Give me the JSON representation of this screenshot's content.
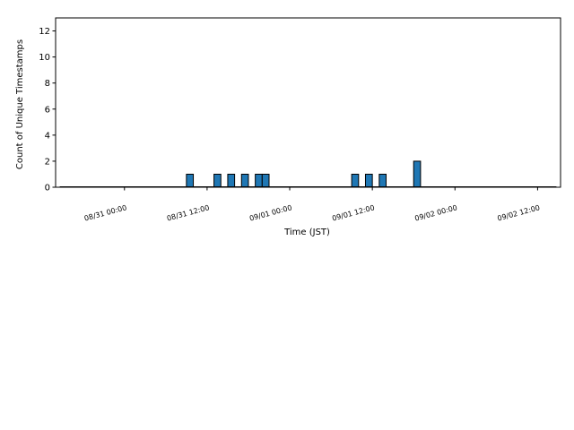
{
  "chart_data": {
    "type": "bar",
    "xlabel": "Time (JST)",
    "ylabel": "Count of Unique Timestamps",
    "x_ticks": [
      "08/31 00:00",
      "08/31 12:00",
      "09/01 00:00",
      "09/01 12:00",
      "09/02 00:00",
      "09/02 12:00"
    ],
    "y_ticks": [
      0,
      2,
      4,
      6,
      8,
      10,
      12
    ],
    "ylim": [
      0,
      13
    ],
    "xlim": [
      "2024-08-30 14:00",
      "2024-09-02 15:20"
    ],
    "bin_width_hours": 1,
    "bar_color": "#1f77b4",
    "edge_color": "#000000",
    "grid": false,
    "legend": "none",
    "bars": [
      {
        "time": "2024-08-31 09:00",
        "value": 1
      },
      {
        "time": "2024-08-31 13:00",
        "value": 1
      },
      {
        "time": "2024-08-31 15:00",
        "value": 1
      },
      {
        "time": "2024-08-31 17:00",
        "value": 1
      },
      {
        "time": "2024-08-31 19:00",
        "value": 1
      },
      {
        "time": "2024-08-31 20:00",
        "value": 1
      },
      {
        "time": "2024-09-01 09:00",
        "value": 1
      },
      {
        "time": "2024-09-01 11:00",
        "value": 1
      },
      {
        "time": "2024-09-01 13:00",
        "value": 1
      },
      {
        "time": "2024-09-01 18:00",
        "value": 2
      }
    ]
  }
}
